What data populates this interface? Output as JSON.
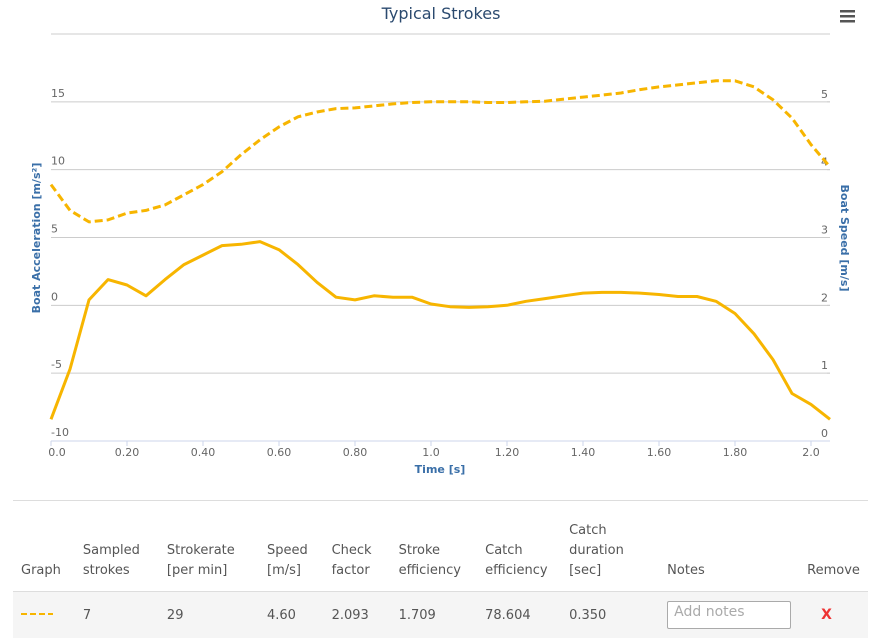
{
  "chart_data": {
    "type": "line",
    "title": "Typical Strokes",
    "xlabel": "Time [s]",
    "ylabel": "Boat Acceleration [m/s²]",
    "y2label": "Boat Speed [m/s]",
    "x": [
      0,
      0.05,
      0.1,
      0.15,
      0.2,
      0.25,
      0.3,
      0.35,
      0.4,
      0.45,
      0.5,
      0.55,
      0.6,
      0.65,
      0.7,
      0.75,
      0.8,
      0.85,
      0.9,
      0.95,
      1.0,
      1.05,
      1.1,
      1.15,
      1.2,
      1.25,
      1.3,
      1.35,
      1.4,
      1.45,
      1.5,
      1.55,
      1.6,
      1.65,
      1.7,
      1.75,
      1.8,
      1.85,
      1.9,
      1.95,
      2.0,
      2.05
    ],
    "series": [
      {
        "name": "Boat Acceleration",
        "color": "#f7b500",
        "dash": false,
        "axis": "y",
        "values": [
          -8.4,
          -4.7,
          0.4,
          1.9,
          1.5,
          0.7,
          1.9,
          3.0,
          3.7,
          4.4,
          4.5,
          4.7,
          4.1,
          3.0,
          1.7,
          0.6,
          0.4,
          0.7,
          0.6,
          0.6,
          0.1,
          -0.1,
          -0.15,
          -0.1,
          0,
          0.3,
          0.5,
          0.7,
          0.9,
          0.95,
          0.95,
          0.9,
          0.8,
          0.65,
          0.65,
          0.3,
          -0.6,
          -2.1,
          -4.0,
          -6.5,
          -7.3,
          -8.4
        ]
      },
      {
        "name": "Boat Speed",
        "color": "#f7b500",
        "dash": true,
        "axis": "y2",
        "values": [
          3.78,
          3.4,
          3.23,
          3.26,
          3.36,
          3.4,
          3.48,
          3.63,
          3.78,
          3.97,
          4.22,
          4.44,
          4.63,
          4.78,
          4.85,
          4.9,
          4.91,
          4.94,
          4.97,
          4.99,
          5.0,
          5.0,
          5.0,
          4.99,
          4.99,
          5.0,
          5.01,
          5.04,
          5.07,
          5.1,
          5.13,
          5.18,
          5.22,
          5.25,
          5.28,
          5.31,
          5.31,
          5.22,
          5.03,
          4.76,
          4.37,
          4.04
        ]
      }
    ],
    "xlim": [
      0,
      2.05
    ],
    "xticks": [
      {
        "value": 0,
        "label": "0.0"
      },
      {
        "value": 0.2,
        "label": "0.20"
      },
      {
        "value": 0.4,
        "label": "0.40"
      },
      {
        "value": 0.6,
        "label": "0.60"
      },
      {
        "value": 0.8,
        "label": "0.80"
      },
      {
        "value": 1,
        "label": "1.0"
      },
      {
        "value": 1.2,
        "label": "1.20"
      },
      {
        "value": 1.4,
        "label": "1.40"
      },
      {
        "value": 1.6,
        "label": "1.60"
      },
      {
        "value": 1.8,
        "label": "1.80"
      },
      {
        "value": 2,
        "label": "2.0"
      }
    ],
    "ylim": [
      -10,
      20
    ],
    "yticks": [
      -10,
      -5,
      0,
      5,
      10,
      15
    ],
    "y2lim": [
      0,
      6
    ],
    "y2ticks": [
      0,
      1,
      2,
      3,
      4,
      5
    ],
    "grid": true
  },
  "table": {
    "headers": [
      "Graph",
      "Sampled strokes",
      "Strokerate [per min]",
      "Speed [m/s]",
      "Check factor",
      "Stroke efficiency",
      "Catch efficiency",
      "Catch duration [sec]",
      "Notes",
      "Remove"
    ],
    "rows": [
      [
        "7",
        "29",
        "4.60",
        "2.093",
        "1.709",
        "78.604",
        "0.350"
      ]
    ],
    "notes_placeholder": "Add notes",
    "remove_label": "X"
  }
}
